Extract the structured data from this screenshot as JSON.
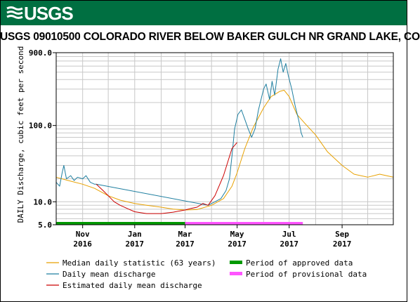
{
  "header": {
    "logo_text": "USGS",
    "logo_icon": "usgs-wave-icon",
    "background": "#006f41"
  },
  "title": "USGS 09010500 COLORADO RIVER BELOW BAKER GULCH NR GRAND LAKE, CO",
  "chart_data": {
    "type": "line",
    "title": "USGS 09010500 COLORADO RIVER BELOW BAKER GULCH NR GRAND LAKE, CO",
    "ylabel": "DAILY Discharge, cubic feet per second",
    "xlabel": "",
    "y_scale": "log",
    "ylim": [
      5,
      900
    ],
    "xlim": [
      "2016-10-01",
      "2017-10-31"
    ],
    "grid": true,
    "y_ticks": [
      {
        "value": 5,
        "label": "5.0"
      },
      {
        "value": 10,
        "label": "10.0"
      },
      {
        "value": 100,
        "label": "100.0"
      },
      {
        "value": 900,
        "label": "900.0"
      }
    ],
    "x_ticks": [
      {
        "date": "2016-11-01",
        "label": "Nov",
        "year": "2016"
      },
      {
        "date": "2017-01-01",
        "label": "Jan",
        "year": "2017"
      },
      {
        "date": "2017-03-01",
        "label": "Mar",
        "year": "2017"
      },
      {
        "date": "2017-05-01",
        "label": "May",
        "year": "2017"
      },
      {
        "date": "2017-07-01",
        "label": "Jul",
        "year": "2017"
      },
      {
        "date": "2017-09-01",
        "label": "Sep",
        "year": "2017"
      }
    ],
    "legend_placement": "bottom",
    "series": [
      {
        "name": "Median daily statistic (63 years)",
        "color": "#e8a100",
        "points": [
          [
            "2016-10-01",
            21
          ],
          [
            "2016-10-15",
            19
          ],
          [
            "2016-11-01",
            17
          ],
          [
            "2016-11-15",
            15
          ],
          [
            "2016-12-01",
            12
          ],
          [
            "2016-12-15",
            10.5
          ],
          [
            "2017-01-01",
            9.5
          ],
          [
            "2017-01-15",
            9
          ],
          [
            "2017-02-01",
            8.5
          ],
          [
            "2017-02-15",
            8
          ],
          [
            "2017-03-01",
            7.8
          ],
          [
            "2017-03-15",
            7.9
          ],
          [
            "2017-04-01",
            9
          ],
          [
            "2017-04-15",
            11
          ],
          [
            "2017-04-25",
            16
          ],
          [
            "2017-05-01",
            24
          ],
          [
            "2017-05-10",
            50
          ],
          [
            "2017-05-20",
            95
          ],
          [
            "2017-06-01",
            170
          ],
          [
            "2017-06-10",
            240
          ],
          [
            "2017-06-20",
            280
          ],
          [
            "2017-06-25",
            290
          ],
          [
            "2017-07-01",
            240
          ],
          [
            "2017-07-10",
            140
          ],
          [
            "2017-07-20",
            105
          ],
          [
            "2017-08-01",
            75
          ],
          [
            "2017-08-15",
            45
          ],
          [
            "2017-09-01",
            30
          ],
          [
            "2017-09-15",
            23
          ],
          [
            "2017-10-01",
            21
          ],
          [
            "2017-10-15",
            23
          ],
          [
            "2017-10-31",
            21
          ]
        ]
      },
      {
        "name": "Daily mean discharge",
        "color": "#1f7fa0",
        "points": [
          [
            "2016-10-01",
            18
          ],
          [
            "2016-10-05",
            16
          ],
          [
            "2016-10-08",
            24
          ],
          [
            "2016-10-10",
            30
          ],
          [
            "2016-10-13",
            20
          ],
          [
            "2016-10-18",
            22
          ],
          [
            "2016-10-22",
            19
          ],
          [
            "2016-10-26",
            21
          ],
          [
            "2016-11-01",
            20
          ],
          [
            "2016-11-05",
            22
          ],
          [
            "2016-11-10",
            18
          ],
          [
            "2016-11-15",
            17
          ],
          [
            "2016-11-17",
            17
          ],
          [
            "2017-03-28",
            9
          ],
          [
            "2017-04-05",
            10
          ],
          [
            "2017-04-12",
            11
          ],
          [
            "2017-04-18",
            14
          ],
          [
            "2017-04-22",
            20
          ],
          [
            "2017-04-25",
            40
          ],
          [
            "2017-04-28",
            90
          ],
          [
            "2017-05-02",
            140
          ],
          [
            "2017-05-06",
            160
          ],
          [
            "2017-05-10",
            120
          ],
          [
            "2017-05-14",
            90
          ],
          [
            "2017-05-18",
            70
          ],
          [
            "2017-05-22",
            90
          ],
          [
            "2017-05-26",
            160
          ],
          [
            "2017-06-01",
            300
          ],
          [
            "2017-06-04",
            350
          ],
          [
            "2017-06-08",
            220
          ],
          [
            "2017-06-11",
            380
          ],
          [
            "2017-06-14",
            250
          ],
          [
            "2017-06-18",
            550
          ],
          [
            "2017-06-21",
            750
          ],
          [
            "2017-06-24",
            500
          ],
          [
            "2017-06-27",
            650
          ],
          [
            "2017-06-30",
            450
          ],
          [
            "2017-07-04",
            300
          ],
          [
            "2017-07-08",
            180
          ],
          [
            "2017-07-12",
            120
          ],
          [
            "2017-07-15",
            80
          ],
          [
            "2017-07-17",
            70
          ]
        ]
      },
      {
        "name": "Estimated daily mean discharge",
        "color": "#cc0000",
        "points": [
          [
            "2016-11-17",
            17
          ],
          [
            "2016-11-25",
            14
          ],
          [
            "2016-12-01",
            12
          ],
          [
            "2016-12-08",
            10
          ],
          [
            "2016-12-15",
            9
          ],
          [
            "2016-12-25",
            8
          ],
          [
            "2017-01-01",
            7.4
          ],
          [
            "2017-01-15",
            7
          ],
          [
            "2017-02-01",
            7
          ],
          [
            "2017-02-15",
            7.3
          ],
          [
            "2017-03-01",
            7.8
          ],
          [
            "2017-03-08",
            8.2
          ],
          [
            "2017-03-15",
            8.5
          ],
          [
            "2017-03-22",
            9.5
          ],
          [
            "2017-03-28",
            9
          ],
          [
            "2017-04-05",
            12
          ],
          [
            "2017-04-15",
            22
          ],
          [
            "2017-04-25",
            50
          ],
          [
            "2017-05-01",
            60
          ]
        ]
      }
    ],
    "periods": [
      {
        "name": "Period of approved data",
        "color": "#009900",
        "start": "2016-10-01",
        "end": "2017-03-01"
      },
      {
        "name": "Period of provisional data",
        "color": "#ff55ff",
        "start": "2017-03-01",
        "end": "2017-07-17"
      }
    ]
  },
  "legend": {
    "items": [
      {
        "label": "Median daily statistic (63 years)",
        "color": "#e8a100",
        "kind": "line"
      },
      {
        "label": "Daily mean discharge",
        "color": "#1f7fa0",
        "kind": "line"
      },
      {
        "label": "Estimated daily mean discharge",
        "color": "#cc0000",
        "kind": "line"
      },
      {
        "label": "Period of approved data",
        "color": "#009900",
        "kind": "bar"
      },
      {
        "label": "Period of provisional data",
        "color": "#ff55ff",
        "kind": "bar"
      }
    ]
  }
}
